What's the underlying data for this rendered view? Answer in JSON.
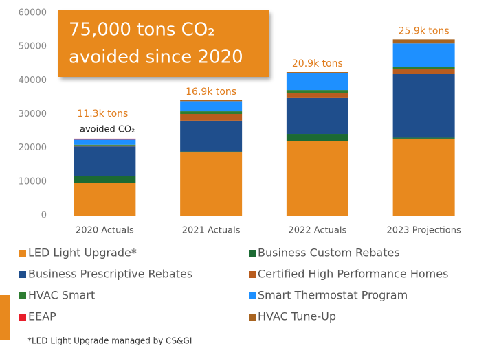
{
  "chart_data": {
    "type": "bar",
    "stacked": true,
    "categories": [
      "2020 Actuals",
      "2021 Actuals",
      "2022 Actuals",
      "2023 Projections"
    ],
    "series": [
      {
        "name": "LED Light Upgrade*",
        "color": "#e8891e",
        "values": [
          9600,
          18700,
          22000,
          22800
        ]
      },
      {
        "name": "Business Custom Rebates",
        "color": "#1c6a33",
        "values": [
          2000,
          300,
          2200,
          300
        ]
      },
      {
        "name": "Business Prescriptive Rebates",
        "color": "#1f4e8c",
        "values": [
          8900,
          9100,
          10600,
          18800
        ]
      },
      {
        "name": "Certified High Performance Homes",
        "color": "#b85c1e",
        "values": [
          300,
          2000,
          1400,
          1600
        ]
      },
      {
        "name": "HVAC Smart",
        "color": "#2e7d32",
        "values": [
          200,
          800,
          1000,
          600
        ]
      },
      {
        "name": "Smart Thermostat Program",
        "color": "#1e90ff",
        "values": [
          1500,
          3000,
          5100,
          6900
        ]
      },
      {
        "name": "EEAP",
        "color": "#e81e2a",
        "values": [
          300,
          0,
          0,
          0
        ]
      },
      {
        "name": "HVAC Tune-Up",
        "color": "#a86420",
        "values": [
          0,
          300,
          200,
          1200
        ]
      }
    ],
    "ylim": [
      0,
      60000
    ],
    "yticks": [
      0,
      10000,
      20000,
      30000,
      40000,
      50000,
      60000
    ],
    "annotations": [
      "11.3k tons",
      "16.9k tons",
      "20.9k tons",
      "25.9k tons"
    ],
    "annotation_note": "avoided CO₂",
    "callout": [
      "75,000 tons CO₂",
      "avoided since 2020"
    ],
    "footnote": "*LED Light Upgrade managed by CS&GI"
  }
}
